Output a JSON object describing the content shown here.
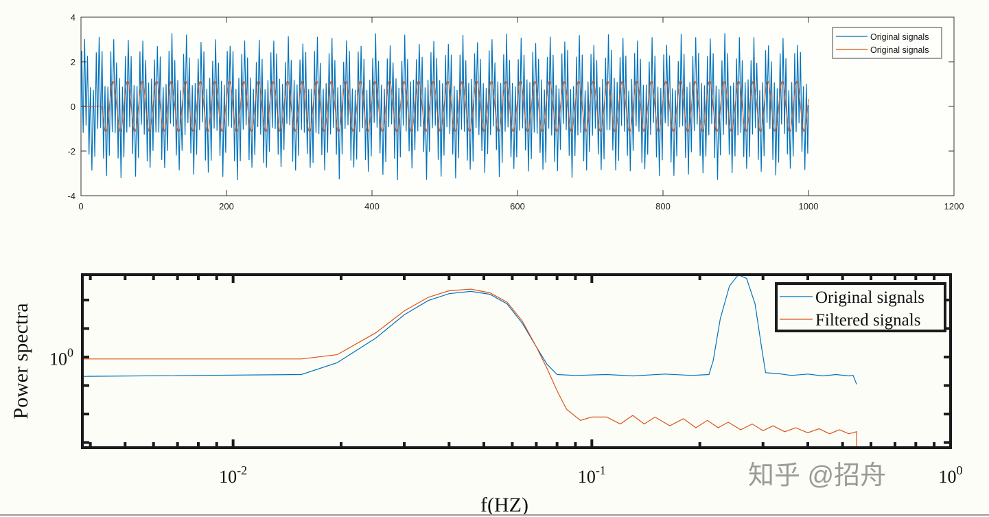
{
  "chart_data": [
    {
      "type": "line",
      "xlim": [
        0,
        1200
      ],
      "ylim": [
        -4,
        4
      ],
      "xticks": [
        0,
        200,
        400,
        600,
        800,
        1000,
        1200
      ],
      "yticks": [
        -4,
        -2,
        0,
        2,
        4
      ],
      "grid": false,
      "legend_placement": "top-right",
      "legend": [
        "Original signals",
        "Original signals"
      ],
      "series": [
        {
          "name": "Original signals",
          "color": "#0072bd",
          "x_range": [
            0,
            1000
          ],
          "components": [
            {
              "freq": 0.05,
              "amp": 1.1
            },
            {
              "freq": 0.25,
              "amp": 1.9
            }
          ],
          "noise_amp": 0.3
        },
        {
          "name": "Original signals",
          "color": "#d95319",
          "x_range": [
            0,
            1000
          ],
          "components": [
            {
              "freq": 0.05,
              "amp": 1.15
            }
          ],
          "onset": 30
        }
      ]
    },
    {
      "type": "line",
      "xscale": "log",
      "yscale": "log",
      "xlim": [
        0.0038,
        1
      ],
      "ylim": [
        0.28,
        3.16
      ],
      "xlabel": "f(HZ)",
      "ylabel": "Power spectra",
      "xtick_labels": [
        {
          "base": "10",
          "exp": "-2",
          "value": 0.01
        },
        {
          "base": "10",
          "exp": "-1",
          "value": 0.1
        },
        {
          "base": "10",
          "exp": "0",
          "value": 1
        }
      ],
      "ytick_labels": [
        {
          "base": "10",
          "exp": "0",
          "value": 1
        }
      ],
      "grid": false,
      "legend_placement": "top-right",
      "series": [
        {
          "name": "Original signals",
          "color": "#0072bd",
          "points": [
            [
              0.0038,
              0.76
            ],
            [
              0.0155,
              0.78
            ],
            [
              0.0195,
              0.92
            ],
            [
              0.025,
              1.3
            ],
            [
              0.03,
              1.8
            ],
            [
              0.035,
              2.2
            ],
            [
              0.04,
              2.42
            ],
            [
              0.046,
              2.5
            ],
            [
              0.052,
              2.4
            ],
            [
              0.058,
              2.1
            ],
            [
              0.064,
              1.6
            ],
            [
              0.07,
              1.15
            ],
            [
              0.075,
              0.9
            ],
            [
              0.08,
              0.78
            ],
            [
              0.09,
              0.77
            ],
            [
              0.11,
              0.78
            ],
            [
              0.13,
              0.765
            ],
            [
              0.16,
              0.785
            ],
            [
              0.19,
              0.77
            ],
            [
              0.212,
              0.78
            ],
            [
              0.218,
              0.95
            ],
            [
              0.228,
              1.7
            ],
            [
              0.242,
              2.7
            ],
            [
              0.256,
              3.15
            ],
            [
              0.27,
              3.0
            ],
            [
              0.285,
              2.1
            ],
            [
              0.298,
              1.1
            ],
            [
              0.305,
              0.8
            ],
            [
              0.33,
              0.79
            ],
            [
              0.36,
              0.77
            ],
            [
              0.4,
              0.785
            ],
            [
              0.44,
              0.765
            ],
            [
              0.48,
              0.78
            ],
            [
              0.52,
              0.765
            ],
            [
              0.535,
              0.77
            ],
            [
              0.547,
              0.68
            ]
          ]
        },
        {
          "name": "Filtered signals",
          "color": "#d95319",
          "points": [
            [
              0.0038,
              0.97
            ],
            [
              0.0155,
              0.97
            ],
            [
              0.0195,
              1.03
            ],
            [
              0.025,
              1.4
            ],
            [
              0.03,
              1.9
            ],
            [
              0.035,
              2.3
            ],
            [
              0.04,
              2.52
            ],
            [
              0.046,
              2.58
            ],
            [
              0.052,
              2.45
            ],
            [
              0.058,
              2.15
            ],
            [
              0.064,
              1.65
            ],
            [
              0.07,
              1.15
            ],
            [
              0.075,
              0.85
            ],
            [
              0.08,
              0.62
            ],
            [
              0.085,
              0.48
            ],
            [
              0.093,
              0.41
            ],
            [
              0.1,
              0.43
            ],
            [
              0.11,
              0.43
            ],
            [
              0.12,
              0.39
            ],
            [
              0.13,
              0.44
            ],
            [
              0.14,
              0.39
            ],
            [
              0.15,
              0.43
            ],
            [
              0.165,
              0.38
            ],
            [
              0.18,
              0.42
            ],
            [
              0.195,
              0.37
            ],
            [
              0.21,
              0.41
            ],
            [
              0.225,
              0.37
            ],
            [
              0.24,
              0.4
            ],
            [
              0.26,
              0.36
            ],
            [
              0.28,
              0.39
            ],
            [
              0.3,
              0.355
            ],
            [
              0.32,
              0.38
            ],
            [
              0.345,
              0.35
            ],
            [
              0.37,
              0.37
            ],
            [
              0.4,
              0.345
            ],
            [
              0.43,
              0.365
            ],
            [
              0.46,
              0.34
            ],
            [
              0.49,
              0.36
            ],
            [
              0.52,
              0.34
            ],
            [
              0.547,
              0.35
            ],
            [
              0.547,
              0.28
            ]
          ]
        }
      ]
    }
  ],
  "watermark": "知乎 @招舟"
}
